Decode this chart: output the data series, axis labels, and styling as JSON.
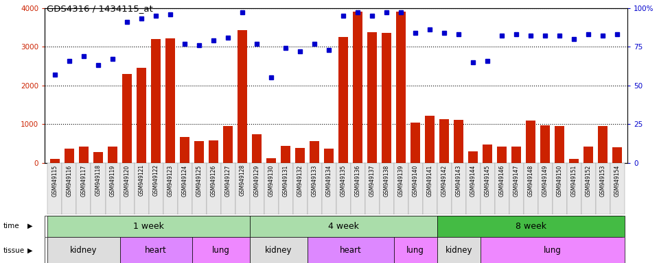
{
  "title": "GDS4316 / 1434115_at",
  "samples": [
    "GSM949115",
    "GSM949116",
    "GSM949117",
    "GSM949118",
    "GSM949119",
    "GSM949120",
    "GSM949121",
    "GSM949122",
    "GSM949123",
    "GSM949124",
    "GSM949125",
    "GSM949126",
    "GSM949127",
    "GSM949128",
    "GSM949129",
    "GSM949130",
    "GSM949131",
    "GSM949132",
    "GSM949133",
    "GSM949134",
    "GSM949135",
    "GSM949136",
    "GSM949137",
    "GSM949138",
    "GSM949139",
    "GSM949140",
    "GSM949141",
    "GSM949142",
    "GSM949143",
    "GSM949144",
    "GSM949145",
    "GSM949146",
    "GSM949147",
    "GSM949148",
    "GSM949149",
    "GSM949150",
    "GSM949151",
    "GSM949152",
    "GSM949153",
    "GSM949154"
  ],
  "counts": [
    100,
    380,
    420,
    280,
    420,
    2300,
    2450,
    3200,
    3220,
    680,
    570,
    590,
    960,
    3420,
    750,
    120,
    440,
    390,
    560,
    380,
    3250,
    3900,
    3380,
    3350,
    3900,
    1050,
    1220,
    1130,
    1120,
    300,
    480,
    420,
    430,
    1100,
    970,
    960,
    100,
    420,
    960,
    400
  ],
  "percentiles": [
    57,
    66,
    69,
    63,
    67,
    91,
    93,
    95,
    96,
    77,
    76,
    79,
    81,
    97,
    77,
    55,
    74,
    72,
    77,
    73,
    95,
    97,
    95,
    97,
    97,
    84,
    86,
    84,
    83,
    65,
    66,
    82,
    83,
    82,
    82,
    82,
    80,
    83,
    82,
    83
  ],
  "bar_color": "#cc2200",
  "dot_color": "#0000cc",
  "ylim_left": [
    0,
    4000
  ],
  "ylim_right": [
    0,
    100
  ],
  "yticks_left": [
    0,
    1000,
    2000,
    3000,
    4000
  ],
  "yticks_right": [
    0,
    25,
    50,
    75,
    100
  ],
  "time_groups": [
    {
      "label": "1 week",
      "start": 0,
      "end": 14,
      "color": "#aaddaa"
    },
    {
      "label": "4 week",
      "start": 14,
      "end": 27,
      "color": "#aaddaa"
    },
    {
      "label": "8 week",
      "start": 27,
      "end": 40,
      "color": "#44bb44"
    }
  ],
  "tissue_groups": [
    {
      "label": "kidney",
      "start": 0,
      "end": 5,
      "color": "#dddddd"
    },
    {
      "label": "heart",
      "start": 5,
      "end": 10,
      "color": "#dd88ff"
    },
    {
      "label": "lung",
      "start": 10,
      "end": 14,
      "color": "#ee88ff"
    },
    {
      "label": "kidney",
      "start": 14,
      "end": 18,
      "color": "#dddddd"
    },
    {
      "label": "heart",
      "start": 18,
      "end": 24,
      "color": "#dd88ff"
    },
    {
      "label": "lung",
      "start": 24,
      "end": 27,
      "color": "#ee88ff"
    },
    {
      "label": "kidney",
      "start": 27,
      "end": 30,
      "color": "#dddddd"
    },
    {
      "label": "lung",
      "start": 30,
      "end": 40,
      "color": "#ee88ff"
    }
  ]
}
